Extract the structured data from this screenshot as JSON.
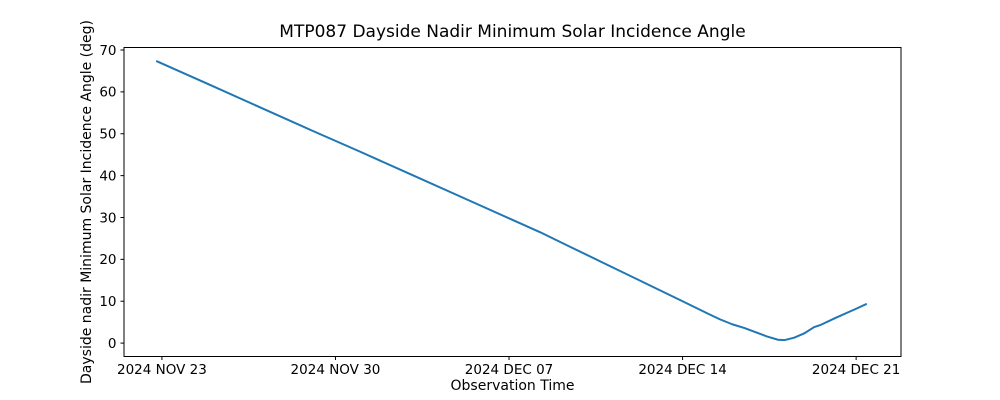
{
  "figure": {
    "background": "#ffffff"
  },
  "chart_data": {
    "type": "line",
    "title": "MTP087 Dayside Nadir Minimum Solar Incidence Angle",
    "xlabel": "Observation Time",
    "ylabel": "Dayside nadir Minimum Solar Incidence Angle (deg)",
    "line_color": "#1f77b4",
    "axis_color": "#000000",
    "grid": false,
    "legend_position": "none",
    "x_unit": "days since 2024 NOV 23",
    "xlim": [
      -1.53,
      29.81
    ],
    "ylim": [
      -3.2,
      70.6
    ],
    "x_ticks": [
      {
        "pos": 0,
        "label": "2024 NOV 23"
      },
      {
        "pos": 7,
        "label": "2024 NOV 30"
      },
      {
        "pos": 14,
        "label": "2024 DEC 07"
      },
      {
        "pos": 21,
        "label": "2024 DEC 14"
      },
      {
        "pos": 28,
        "label": "2024 DEC 21"
      }
    ],
    "y_ticks": [
      0,
      10,
      20,
      30,
      40,
      50,
      60,
      70
    ],
    "series": [
      {
        "name": "dayside-nadir-min-solar-incidence-angle",
        "x": [
          -0.2,
          2,
          4,
          6,
          8,
          10,
          12,
          14,
          15.25,
          16.5,
          18,
          19.5,
          21,
          22,
          22.5,
          23,
          23.5,
          24,
          24.4,
          24.85,
          25.1,
          25.5,
          25.9,
          26.3,
          26.55,
          27.2,
          28,
          28.4
        ],
        "y": [
          67.3,
          61.5,
          56.2,
          50.9,
          45.7,
          40.4,
          35.1,
          29.8,
          26.5,
          22.9,
          18.6,
          14.3,
          10.0,
          7.1,
          5.7,
          4.5,
          3.6,
          2.5,
          1.6,
          0.8,
          0.7,
          1.3,
          2.3,
          3.8,
          4.3,
          6.1,
          8.2,
          9.3
        ]
      }
    ]
  }
}
